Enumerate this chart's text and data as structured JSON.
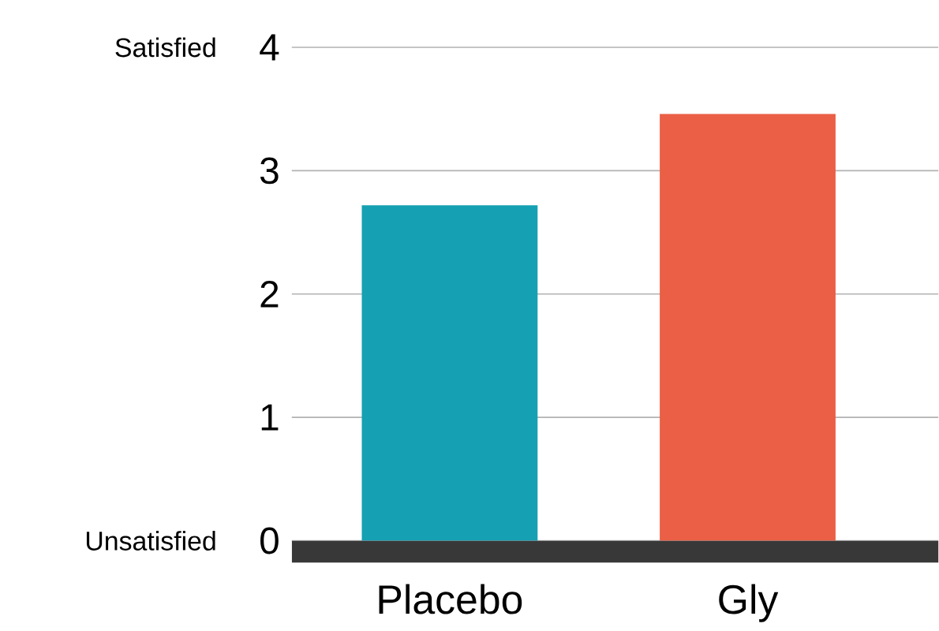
{
  "chart_data": {
    "type": "bar",
    "categories": [
      "Placebo",
      "Gly"
    ],
    "values": [
      2.72,
      3.46
    ],
    "colors": [
      "#16a0b3",
      "#ea5f45"
    ],
    "ylim": [
      0,
      4
    ],
    "yticks": [
      0,
      1,
      2,
      3,
      4
    ],
    "grid": "y",
    "annotations": [
      "Satisfied",
      "Unsatisfied"
    ]
  }
}
